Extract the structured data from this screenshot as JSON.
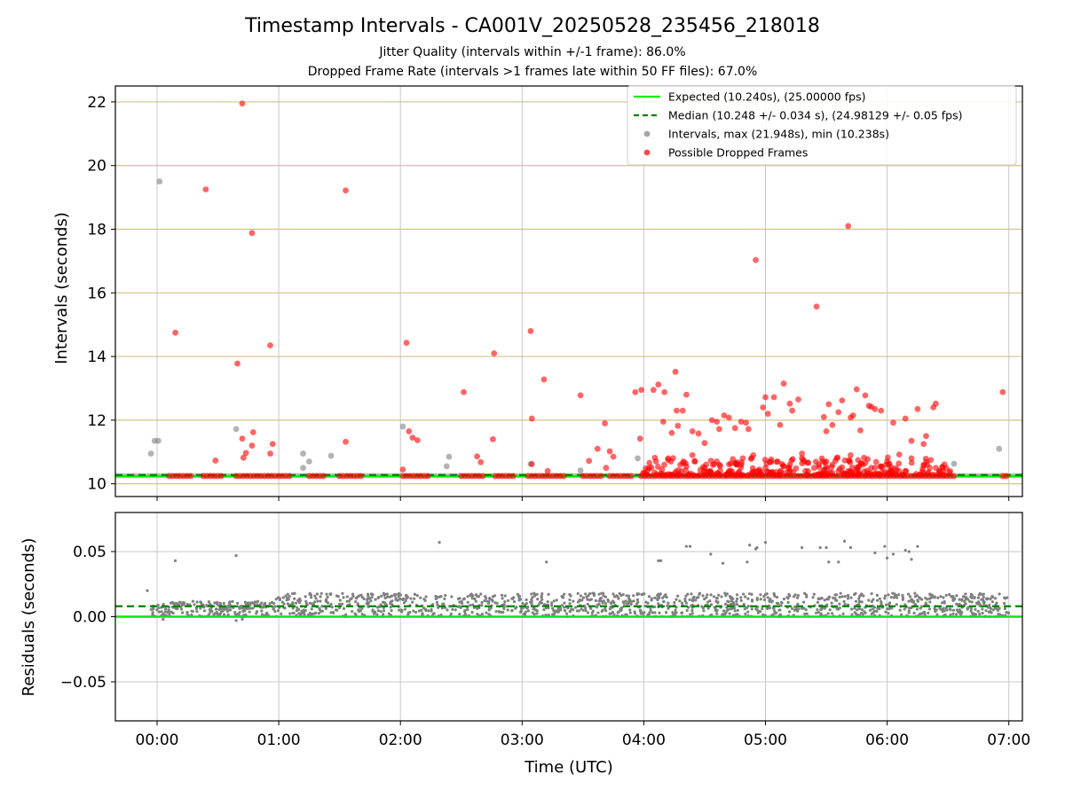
{
  "chart_data": [
    {
      "panel": "intervals",
      "type": "scatter",
      "title": "Timestamp Intervals - CA001V_20250528_235456_218018",
      "subtitle_lines": [
        "Jitter Quality (intervals within +/-1 frame): 86.0%",
        "Dropped Frame Rate (intervals >1 frames late within 50 FF files): 67.0%"
      ],
      "ylabel": "Intervals (seconds)",
      "xlim_hours": [
        -0.1,
        7.0
      ],
      "ylim": [
        9.6,
        22.5
      ],
      "yticks": [
        "10",
        "12",
        "14",
        "16",
        "18",
        "20",
        "22"
      ],
      "ytick_values": [
        10,
        12,
        14,
        16,
        18,
        20,
        22
      ],
      "grid": true,
      "legend_position": "top-right",
      "colors": {
        "expected": "#00ee00",
        "median": "#008000",
        "intervals": "#808080",
        "dropped": "#ff0000",
        "hgrid": "#d4c08a",
        "vgrid": "#c8c8c8"
      },
      "series": [
        {
          "name": "Expected (10.240s), (25.00000 fps)",
          "kind": "hline",
          "y": 10.24
        },
        {
          "name": "Median (10.248 +/- 0.034 s), (24.98129 +/- 0.05 fps)",
          "kind": "hline-dashed",
          "y": 10.248
        },
        {
          "name": "Intervals, max (21.948s), min (10.238s)",
          "kind": "scatter",
          "points": [
            [
              -0.05,
              10.95
            ],
            [
              -0.02,
              11.35
            ],
            [
              0.01,
              11.35
            ],
            [
              0.02,
              19.5
            ],
            [
              0.65,
              11.72
            ],
            [
              1.2,
              10.95
            ],
            [
              1.25,
              10.7
            ],
            [
              1.2,
              10.5
            ],
            [
              1.43,
              10.88
            ],
            [
              2.02,
              11.8
            ],
            [
              2.4,
              10.85
            ],
            [
              2.38,
              10.55
            ],
            [
              3.07,
              10.62
            ],
            [
              3.48,
              10.42
            ],
            [
              3.95,
              10.8
            ],
            [
              6.55,
              10.63
            ],
            [
              6.92,
              11.1
            ]
          ]
        },
        {
          "name": "Possible Dropped Frames",
          "kind": "scatter",
          "points": [
            [
              0.7,
              21.95
            ],
            [
              0.4,
              19.25
            ],
            [
              1.55,
              19.22
            ],
            [
              0.78,
              17.88
            ],
            [
              0.15,
              14.75
            ],
            [
              0.93,
              14.35
            ],
            [
              0.66,
              13.78
            ],
            [
              0.7,
              11.42
            ],
            [
              0.79,
              11.62
            ],
            [
              0.78,
              11.2
            ],
            [
              0.73,
              10.97
            ],
            [
              0.71,
              10.82
            ],
            [
              0.95,
              11.25
            ],
            [
              0.93,
              10.95
            ],
            [
              0.48,
              10.73
            ],
            [
              1.55,
              11.32
            ],
            [
              2.05,
              14.43
            ],
            [
              2.07,
              11.65
            ],
            [
              2.1,
              11.45
            ],
            [
              2.14,
              11.37
            ],
            [
              2.02,
              10.45
            ],
            [
              2.52,
              12.88
            ],
            [
              2.63,
              10.86
            ],
            [
              2.66,
              10.68
            ],
            [
              2.77,
              14.1
            ],
            [
              2.76,
              11.4
            ],
            [
              3.07,
              14.8
            ],
            [
              3.08,
              12.05
            ],
            [
              3.18,
              13.28
            ],
            [
              3.08,
              10.62
            ],
            [
              3.21,
              10.4
            ],
            [
              3.48,
              12.78
            ],
            [
              3.55,
              10.72
            ],
            [
              3.62,
              11.1
            ],
            [
              3.68,
              11.9
            ],
            [
              3.72,
              11.02
            ],
            [
              3.75,
              10.85
            ],
            [
              3.69,
              10.5
            ],
            [
              3.93,
              12.88
            ],
            [
              3.98,
              12.95
            ],
            [
              3.97,
              11.42
            ],
            [
              4.12,
              13.12
            ],
            [
              4.08,
              12.95
            ],
            [
              4.17,
              12.88
            ],
            [
              4.16,
              11.95
            ],
            [
              4.23,
              11.6
            ],
            [
              4.26,
              13.52
            ],
            [
              4.28,
              11.82
            ],
            [
              4.27,
              12.3
            ],
            [
              4.32,
              12.3
            ],
            [
              4.35,
              12.8
            ],
            [
              4.4,
              11.65
            ],
            [
              4.45,
              11.58
            ],
            [
              4.5,
              11.28
            ],
            [
              4.56,
              12.0
            ],
            [
              4.6,
              11.95
            ],
            [
              4.62,
              11.72
            ],
            [
              4.66,
              12.15
            ],
            [
              4.7,
              12.08
            ],
            [
              4.75,
              11.75
            ],
            [
              4.8,
              11.95
            ],
            [
              4.84,
              11.92
            ],
            [
              4.86,
              11.72
            ],
            [
              4.92,
              17.03
            ],
            [
              4.98,
              12.4
            ],
            [
              5.0,
              12.72
            ],
            [
              5.02,
              12.2
            ],
            [
              5.07,
              12.72
            ],
            [
              5.12,
              11.85
            ],
            [
              5.15,
              13.15
            ],
            [
              5.2,
              12.52
            ],
            [
              5.22,
              12.3
            ],
            [
              5.27,
              12.65
            ],
            [
              5.3,
              10.95
            ],
            [
              5.42,
              15.57
            ],
            [
              5.48,
              12.1
            ],
            [
              5.5,
              11.65
            ],
            [
              5.52,
              12.5
            ],
            [
              5.55,
              11.85
            ],
            [
              5.6,
              12.25
            ],
            [
              5.63,
              12.62
            ],
            [
              5.68,
              18.1
            ],
            [
              5.7,
              12.08
            ],
            [
              5.72,
              12.15
            ],
            [
              5.75,
              12.97
            ],
            [
              5.78,
              11.68
            ],
            [
              5.82,
              12.78
            ],
            [
              5.85,
              12.45
            ],
            [
              5.87,
              12.42
            ],
            [
              5.9,
              12.35
            ],
            [
              5.95,
              12.3
            ],
            [
              6.05,
              11.92
            ],
            [
              6.1,
              10.92
            ],
            [
              6.15,
              12.05
            ],
            [
              6.2,
              11.35
            ],
            [
              6.25,
              12.35
            ],
            [
              6.3,
              11.25
            ],
            [
              6.32,
              11.5
            ],
            [
              6.38,
              12.4
            ],
            [
              6.4,
              12.52
            ],
            [
              6.95,
              12.88
            ],
            [
              4.1,
              10.7
            ],
            [
              4.2,
              10.8
            ],
            [
              4.3,
              10.6
            ],
            [
              4.4,
              10.9
            ],
            [
              4.5,
              10.5
            ],
            [
              4.6,
              10.7
            ],
            [
              4.7,
              10.4
            ],
            [
              4.8,
              10.6
            ],
            [
              4.9,
              10.9
            ],
            [
              5.0,
              10.5
            ],
            [
              5.1,
              10.7
            ],
            [
              5.2,
              10.6
            ],
            [
              5.3,
              10.8
            ],
            [
              5.4,
              10.5
            ],
            [
              5.5,
              10.7
            ],
            [
              5.6,
              10.4
            ],
            [
              5.7,
              10.9
            ],
            [
              5.8,
              10.6
            ],
            [
              5.9,
              10.5
            ],
            [
              6.0,
              10.7
            ],
            [
              6.1,
              10.4
            ],
            [
              6.2,
              10.8
            ],
            [
              6.3,
              10.6
            ],
            [
              6.4,
              10.5
            ],
            [
              4.15,
              10.45
            ],
            [
              4.35,
              10.55
            ],
            [
              4.55,
              10.4
            ],
            [
              4.75,
              10.65
            ],
            [
              4.95,
              10.45
            ],
            [
              5.15,
              10.55
            ],
            [
              5.35,
              10.4
            ],
            [
              5.55,
              10.6
            ],
            [
              5.75,
              10.45
            ],
            [
              5.95,
              10.55
            ],
            [
              6.15,
              10.4
            ],
            [
              6.35,
              10.5
            ]
          ],
          "bands_at_10_24": [
            [
              0.1,
              0.3
            ],
            [
              0.38,
              0.55
            ],
            [
              0.65,
              1.1
            ],
            [
              1.25,
              1.38
            ],
            [
              1.5,
              1.68
            ],
            [
              2.02,
              2.25
            ],
            [
              2.5,
              2.68
            ],
            [
              2.78,
              2.95
            ],
            [
              3.05,
              3.35
            ],
            [
              3.5,
              3.65
            ],
            [
              3.72,
              3.9
            ],
            [
              3.98,
              6.55
            ],
            [
              6.95,
              7.0
            ]
          ]
        }
      ]
    },
    {
      "panel": "residuals",
      "type": "scatter",
      "xlabel": "Time (UTC)",
      "ylabel": "Residuals (seconds)",
      "xlim_hours": [
        -0.1,
        7.0
      ],
      "ylim": [
        -0.08,
        0.08
      ],
      "yticks": [
        "0.05",
        "0.00",
        "−0.05"
      ],
      "ytick_values": [
        0.05,
        0.0,
        -0.05
      ],
      "xticks": [
        "00:00",
        "01:00",
        "02:00",
        "03:00",
        "04:00",
        "05:00",
        "06:00",
        "07:00"
      ],
      "xtick_values": [
        0,
        1,
        2,
        3,
        4,
        5,
        6,
        7
      ],
      "grid": true,
      "series": [
        {
          "name": "Expected",
          "kind": "hline",
          "y": 0.0
        },
        {
          "name": "Median",
          "kind": "hline-dashed",
          "y": 0.008
        },
        {
          "name": "Residuals",
          "kind": "scatter",
          "outliers": [
            [
              0.15,
              0.043
            ],
            [
              0.65,
              0.047
            ],
            [
              2.32,
              0.057
            ],
            [
              3.2,
              0.042
            ],
            [
              4.12,
              0.043
            ],
            [
              4.14,
              0.043
            ],
            [
              4.35,
              0.054
            ],
            [
              4.38,
              0.054
            ],
            [
              4.55,
              0.048
            ],
            [
              4.65,
              0.041
            ],
            [
              4.85,
              0.042
            ],
            [
              4.87,
              0.055
            ],
            [
              4.92,
              0.052
            ],
            [
              4.93,
              0.053
            ],
            [
              5.0,
              0.057
            ],
            [
              5.3,
              0.053
            ],
            [
              5.45,
              0.053
            ],
            [
              5.52,
              0.042
            ],
            [
              5.5,
              0.053
            ],
            [
              5.6,
              0.042
            ],
            [
              5.65,
              0.058
            ],
            [
              5.7,
              0.053
            ],
            [
              5.9,
              0.049
            ],
            [
              5.98,
              0.054
            ],
            [
              6.0,
              0.045
            ],
            [
              6.05,
              0.048
            ],
            [
              6.15,
              0.051
            ],
            [
              6.18,
              0.05
            ],
            [
              6.2,
              0.044
            ],
            [
              6.25,
              0.054
            ],
            [
              -0.08,
              0.02
            ],
            [
              0.05,
              -0.002
            ],
            [
              0.65,
              -0.003
            ],
            [
              0.7,
              -0.002
            ]
          ],
          "band_range": [
            0.0,
            0.018
          ]
        }
      ]
    }
  ]
}
